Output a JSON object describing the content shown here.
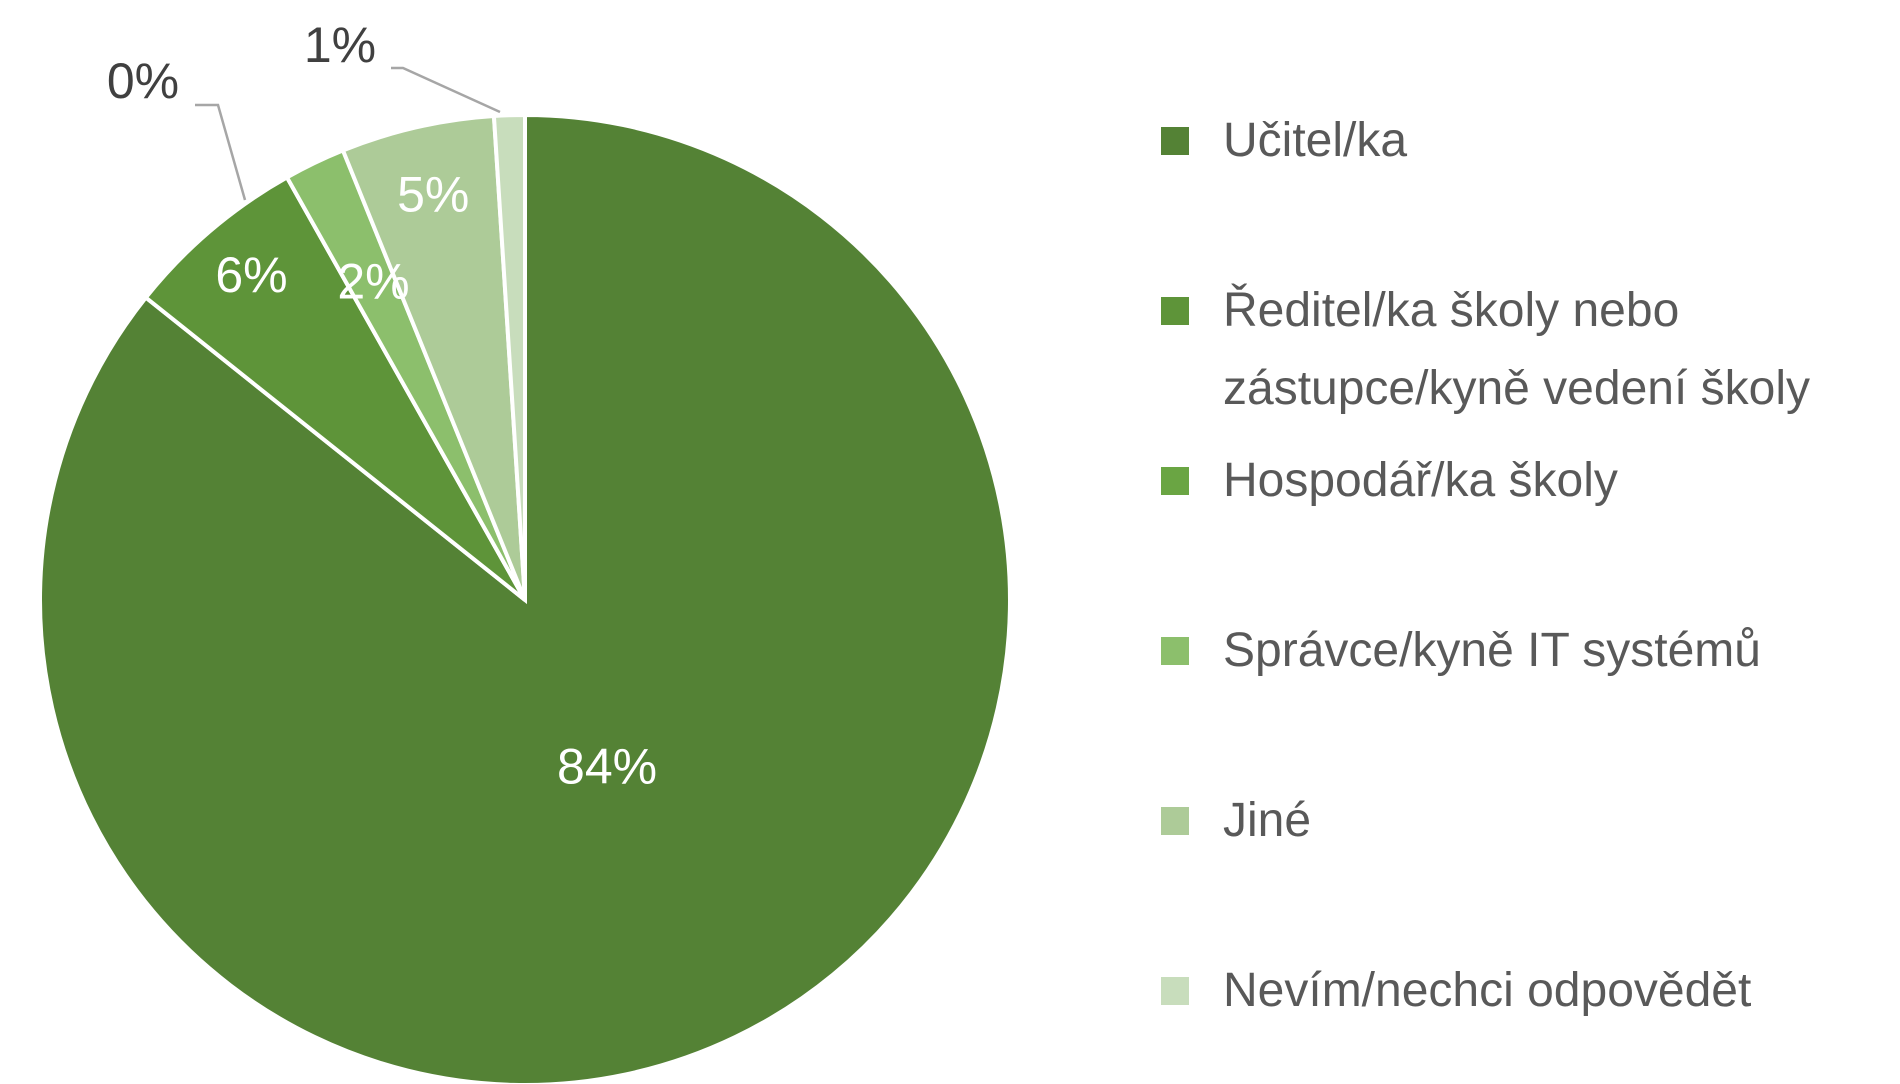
{
  "chart_data": {
    "type": "pie",
    "categories": [
      "Učitel/ka",
      "Ředitel/ka školy nebo zástupce/kyně vedení školy",
      "Hospodář/ka školy",
      "Správce/kyně IT systémů",
      "Jiné",
      "Nevím/nechci odpovědět"
    ],
    "values": [
      84,
      6,
      0,
      2,
      5,
      1
    ],
    "value_labels": [
      "84%",
      "6%",
      "0%",
      "2%",
      "5%",
      "1%"
    ],
    "colors": [
      "#548235",
      "#5e9439",
      "#6aa543",
      "#8cbf6c",
      "#adcb98",
      "#c8ddbc"
    ],
    "legend": "right"
  }
}
